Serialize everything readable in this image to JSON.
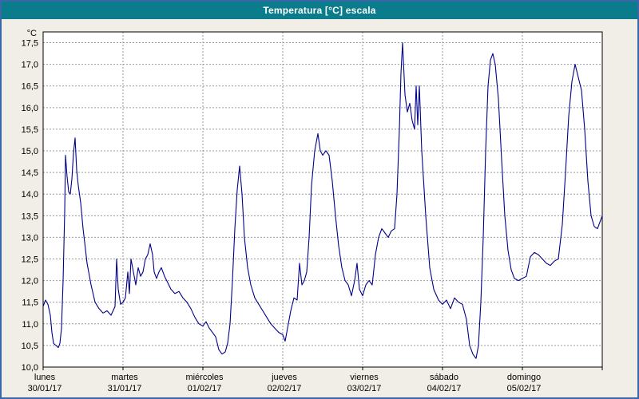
{
  "window": {
    "title": "Temperatura [°C] escala"
  },
  "colors": {
    "frame": "#3a67a8",
    "titlebar_bg": "#0b7c8c",
    "titlebar_text": "#ffffff",
    "window_bg": "#f0eee6",
    "plot_bg": "#ffffff",
    "plot_border": "#000000",
    "grid": "#9a9a9a",
    "label": "#000000",
    "line": "#00008b"
  },
  "chart_data": {
    "type": "line",
    "title": "Temperatura [°C] escala",
    "y_unit_label": "°C",
    "xlabel": "",
    "ylabel": "°C",
    "xlim": [
      0,
      7
    ],
    "ylim": [
      10.0,
      17.75
    ],
    "grid": "dashed",
    "legend": "none",
    "yticks": {
      "values": [
        10.0,
        10.5,
        11.0,
        11.5,
        12.0,
        12.5,
        13.0,
        13.5,
        14.0,
        14.5,
        15.0,
        15.5,
        16.0,
        16.5,
        17.0,
        17.5
      ],
      "labels": [
        "10,0",
        "10,5",
        "11,0",
        "11,5",
        "12,0",
        "12,5",
        "13,0",
        "13,5",
        "14,0",
        "14,5",
        "15,0",
        "15,5",
        "16,0",
        "16,5",
        "17,0",
        "17,5"
      ]
    },
    "days": [
      {
        "name": "lunes",
        "date": "30/01/17"
      },
      {
        "name": "martes",
        "date": "31/01/17"
      },
      {
        "name": "miércoles",
        "date": "01/02/17"
      },
      {
        "name": "jueves",
        "date": "02/02/17"
      },
      {
        "name": "viernes",
        "date": "03/02/17"
      },
      {
        "name": "sábado",
        "date": "04/02/17"
      },
      {
        "name": "domingo",
        "date": "05/02/17"
      }
    ],
    "series": [
      {
        "name": "Temperatura",
        "color": "#00008b",
        "points": [
          [
            0.0,
            11.4
          ],
          [
            0.03,
            11.55
          ],
          [
            0.06,
            11.45
          ],
          [
            0.09,
            11.2
          ],
          [
            0.11,
            10.8
          ],
          [
            0.13,
            10.55
          ],
          [
            0.16,
            10.5
          ],
          [
            0.19,
            10.45
          ],
          [
            0.21,
            10.55
          ],
          [
            0.23,
            10.9
          ],
          [
            0.25,
            12.0
          ],
          [
            0.27,
            13.6
          ],
          [
            0.28,
            14.9
          ],
          [
            0.3,
            14.4
          ],
          [
            0.32,
            14.05
          ],
          [
            0.34,
            14.0
          ],
          [
            0.36,
            14.35
          ],
          [
            0.38,
            14.95
          ],
          [
            0.4,
            15.3
          ],
          [
            0.42,
            14.55
          ],
          [
            0.44,
            14.2
          ],
          [
            0.47,
            13.8
          ],
          [
            0.5,
            13.2
          ],
          [
            0.55,
            12.4
          ],
          [
            0.6,
            11.9
          ],
          [
            0.65,
            11.5
          ],
          [
            0.7,
            11.35
          ],
          [
            0.75,
            11.25
          ],
          [
            0.8,
            11.3
          ],
          [
            0.85,
            11.2
          ],
          [
            0.9,
            11.4
          ],
          [
            0.92,
            12.5
          ],
          [
            0.94,
            11.8
          ],
          [
            0.97,
            11.45
          ],
          [
            1.0,
            11.5
          ],
          [
            1.03,
            11.6
          ],
          [
            1.06,
            12.2
          ],
          [
            1.08,
            11.7
          ],
          [
            1.1,
            12.5
          ],
          [
            1.13,
            12.2
          ],
          [
            1.16,
            11.9
          ],
          [
            1.19,
            12.3
          ],
          [
            1.22,
            12.1
          ],
          [
            1.25,
            12.2
          ],
          [
            1.28,
            12.5
          ],
          [
            1.31,
            12.6
          ],
          [
            1.34,
            12.85
          ],
          [
            1.37,
            12.6
          ],
          [
            1.39,
            12.2
          ],
          [
            1.42,
            12.05
          ],
          [
            1.45,
            12.2
          ],
          [
            1.48,
            12.3
          ],
          [
            1.52,
            12.1
          ],
          [
            1.56,
            11.95
          ],
          [
            1.6,
            11.8
          ],
          [
            1.65,
            11.7
          ],
          [
            1.7,
            11.75
          ],
          [
            1.75,
            11.6
          ],
          [
            1.8,
            11.5
          ],
          [
            1.85,
            11.35
          ],
          [
            1.9,
            11.15
          ],
          [
            1.95,
            11.0
          ],
          [
            2.0,
            10.95
          ],
          [
            2.04,
            11.05
          ],
          [
            2.08,
            10.9
          ],
          [
            2.12,
            10.8
          ],
          [
            2.16,
            10.7
          ],
          [
            2.2,
            10.4
          ],
          [
            2.24,
            10.3
          ],
          [
            2.28,
            10.35
          ],
          [
            2.31,
            10.55
          ],
          [
            2.34,
            11.0
          ],
          [
            2.37,
            12.0
          ],
          [
            2.4,
            13.2
          ],
          [
            2.43,
            14.1
          ],
          [
            2.46,
            14.65
          ],
          [
            2.49,
            14.0
          ],
          [
            2.52,
            13.0
          ],
          [
            2.56,
            12.3
          ],
          [
            2.6,
            11.9
          ],
          [
            2.65,
            11.6
          ],
          [
            2.7,
            11.45
          ],
          [
            2.75,
            11.3
          ],
          [
            2.8,
            11.15
          ],
          [
            2.85,
            11.0
          ],
          [
            2.9,
            10.9
          ],
          [
            2.95,
            10.8
          ],
          [
            3.0,
            10.75
          ],
          [
            3.03,
            10.6
          ],
          [
            3.06,
            10.9
          ],
          [
            3.1,
            11.3
          ],
          [
            3.14,
            11.6
          ],
          [
            3.18,
            11.55
          ],
          [
            3.21,
            12.4
          ],
          [
            3.24,
            11.9
          ],
          [
            3.27,
            12.0
          ],
          [
            3.3,
            12.2
          ],
          [
            3.33,
            13.0
          ],
          [
            3.36,
            14.2
          ],
          [
            3.4,
            15.0
          ],
          [
            3.44,
            15.4
          ],
          [
            3.47,
            15.0
          ],
          [
            3.5,
            14.9
          ],
          [
            3.54,
            15.0
          ],
          [
            3.58,
            14.9
          ],
          [
            3.62,
            14.3
          ],
          [
            3.66,
            13.5
          ],
          [
            3.7,
            12.8
          ],
          [
            3.74,
            12.3
          ],
          [
            3.78,
            12.0
          ],
          [
            3.82,
            11.9
          ],
          [
            3.86,
            11.65
          ],
          [
            3.9,
            12.0
          ],
          [
            3.93,
            12.4
          ],
          [
            3.96,
            11.8
          ],
          [
            4.0,
            11.65
          ],
          [
            4.04,
            11.9
          ],
          [
            4.08,
            12.0
          ],
          [
            4.12,
            11.9
          ],
          [
            4.16,
            12.6
          ],
          [
            4.2,
            13.0
          ],
          [
            4.24,
            13.2
          ],
          [
            4.28,
            13.1
          ],
          [
            4.32,
            13.0
          ],
          [
            4.36,
            13.15
          ],
          [
            4.4,
            13.2
          ],
          [
            4.43,
            14.0
          ],
          [
            4.46,
            15.5
          ],
          [
            4.48,
            16.8
          ],
          [
            4.5,
            17.5
          ],
          [
            4.53,
            16.3
          ],
          [
            4.56,
            15.9
          ],
          [
            4.59,
            16.1
          ],
          [
            4.62,
            15.7
          ],
          [
            4.65,
            15.5
          ],
          [
            4.67,
            16.5
          ],
          [
            4.69,
            15.6
          ],
          [
            4.71,
            16.5
          ],
          [
            4.74,
            15.0
          ],
          [
            4.79,
            13.5
          ],
          [
            4.84,
            12.3
          ],
          [
            4.89,
            11.8
          ],
          [
            4.95,
            11.55
          ],
          [
            5.0,
            11.45
          ],
          [
            5.05,
            11.55
          ],
          [
            5.1,
            11.35
          ],
          [
            5.15,
            11.6
          ],
          [
            5.2,
            11.5
          ],
          [
            5.25,
            11.45
          ],
          [
            5.3,
            11.1
          ],
          [
            5.34,
            10.5
          ],
          [
            5.38,
            10.3
          ],
          [
            5.42,
            10.2
          ],
          [
            5.45,
            10.5
          ],
          [
            5.48,
            11.5
          ],
          [
            5.51,
            13.0
          ],
          [
            5.54,
            15.0
          ],
          [
            5.57,
            16.5
          ],
          [
            5.6,
            17.1
          ],
          [
            5.63,
            17.25
          ],
          [
            5.66,
            17.0
          ],
          [
            5.7,
            16.2
          ],
          [
            5.74,
            14.8
          ],
          [
            5.78,
            13.5
          ],
          [
            5.82,
            12.7
          ],
          [
            5.86,
            12.25
          ],
          [
            5.9,
            12.05
          ],
          [
            5.95,
            12.0
          ],
          [
            6.0,
            12.05
          ],
          [
            6.05,
            12.1
          ],
          [
            6.1,
            12.55
          ],
          [
            6.15,
            12.65
          ],
          [
            6.2,
            12.6
          ],
          [
            6.25,
            12.5
          ],
          [
            6.3,
            12.4
          ],
          [
            6.35,
            12.35
          ],
          [
            6.4,
            12.45
          ],
          [
            6.45,
            12.5
          ],
          [
            6.5,
            13.3
          ],
          [
            6.54,
            14.5
          ],
          [
            6.58,
            15.8
          ],
          [
            6.62,
            16.6
          ],
          [
            6.66,
            17.0
          ],
          [
            6.7,
            16.7
          ],
          [
            6.74,
            16.4
          ],
          [
            6.78,
            15.5
          ],
          [
            6.82,
            14.3
          ],
          [
            6.86,
            13.5
          ],
          [
            6.9,
            13.25
          ],
          [
            6.94,
            13.2
          ],
          [
            6.97,
            13.35
          ],
          [
            7.0,
            13.5
          ]
        ]
      }
    ]
  }
}
